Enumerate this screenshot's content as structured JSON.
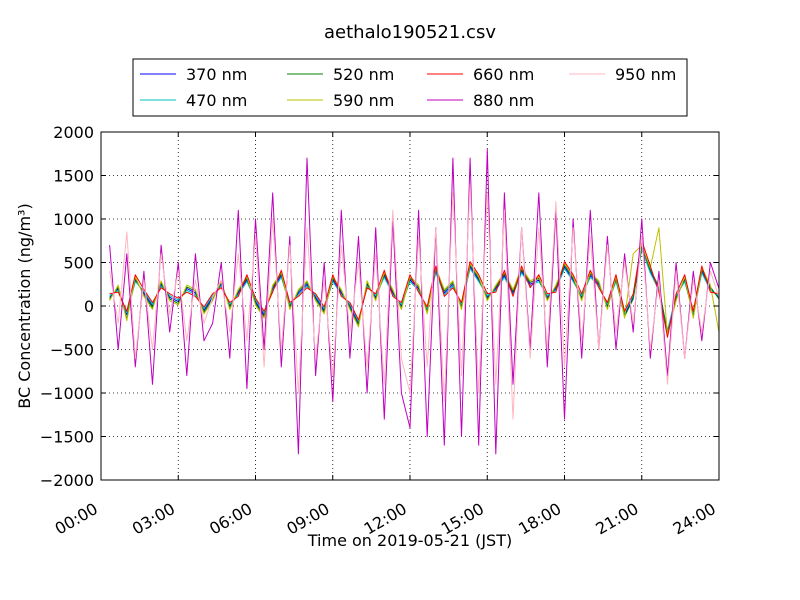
{
  "chart_data": {
    "type": "line",
    "title": "aethalo190521.csv",
    "xlabel": "Time on 2019-05-21 (JST)",
    "ylabel": "BC Concentration (ng/m³)",
    "xlim": [
      "00:00",
      "24:00"
    ],
    "ylim": [
      -2000,
      2000
    ],
    "x_ticks": [
      "00:00",
      "03:00",
      "06:00",
      "09:00",
      "12:00",
      "15:00",
      "18:00",
      "21:00",
      "24:00"
    ],
    "y_ticks": [
      "−2000",
      "−1500",
      "−1000",
      "−500",
      "0",
      "500",
      "1000",
      "1500",
      "2000"
    ],
    "grid": true,
    "legend_position": "top-center",
    "x": [
      "00:20",
      "00:40",
      "01:00",
      "01:20",
      "01:40",
      "02:00",
      "02:20",
      "02:40",
      "03:00",
      "03:20",
      "03:40",
      "04:00",
      "04:20",
      "04:40",
      "05:00",
      "05:20",
      "05:40",
      "06:00",
      "06:20",
      "06:40",
      "07:00",
      "07:20",
      "07:40",
      "08:00",
      "08:20",
      "08:40",
      "09:00",
      "09:20",
      "09:40",
      "10:00",
      "10:20",
      "10:40",
      "11:00",
      "11:20",
      "11:40",
      "12:00",
      "12:20",
      "12:40",
      "13:00",
      "13:20",
      "13:40",
      "14:00",
      "14:20",
      "14:40",
      "15:00",
      "15:20",
      "15:40",
      "16:00",
      "16:20",
      "16:40",
      "17:00",
      "17:20",
      "17:40",
      "18:00",
      "18:20",
      "18:40",
      "19:00",
      "19:20",
      "19:40",
      "20:00",
      "20:20",
      "20:40",
      "21:00",
      "21:20",
      "21:40",
      "22:00",
      "22:20",
      "22:40",
      "23:00",
      "23:20",
      "23:40",
      "24:00"
    ],
    "series": [
      {
        "name": "370 nm",
        "color": "#0000ff",
        "values": [
          100,
          200,
          -100,
          300,
          150,
          0,
          250,
          100,
          50,
          200,
          150,
          -50,
          100,
          250,
          0,
          150,
          300,
          50,
          -100,
          200,
          350,
          0,
          150,
          250,
          100,
          -50,
          300,
          150,
          0,
          -200,
          250,
          100,
          350,
          150,
          0,
          300,
          200,
          -50,
          400,
          150,
          250,
          0,
          450,
          300,
          100,
          200,
          350,
          150,
          400,
          250,
          300,
          100,
          200,
          450,
          300,
          100,
          350,
          250,
          0,
          300,
          -100,
          100,
          700,
          400,
          200,
          -300,
          100,
          300,
          -100,
          400,
          200,
          100
        ]
      },
      {
        "name": "470 nm",
        "color": "#00bfbf",
        "values": [
          120,
          180,
          -80,
          280,
          170,
          20,
          230,
          120,
          70,
          180,
          130,
          -30,
          120,
          230,
          20,
          130,
          280,
          70,
          -80,
          180,
          330,
          20,
          130,
          230,
          120,
          -30,
          280,
          130,
          20,
          -180,
          230,
          120,
          330,
          130,
          20,
          280,
          180,
          -30,
          380,
          130,
          230,
          20,
          430,
          280,
          120,
          180,
          330,
          130,
          380,
          230,
          280,
          120,
          180,
          430,
          280,
          120,
          330,
          230,
          20,
          280,
          -80,
          120,
          650,
          380,
          180,
          -280,
          120,
          280,
          -80,
          380,
          180,
          120
        ]
      },
      {
        "name": "520 nm",
        "color": "#008000",
        "values": [
          80,
          220,
          -150,
          320,
          130,
          -20,
          270,
          80,
          30,
          220,
          170,
          -70,
          80,
          270,
          -20,
          170,
          320,
          30,
          -120,
          220,
          370,
          -20,
          170,
          270,
          80,
          -70,
          320,
          170,
          -20,
          -220,
          270,
          80,
          370,
          170,
          -20,
          320,
          220,
          -70,
          420,
          170,
          270,
          -20,
          470,
          320,
          80,
          220,
          370,
          170,
          420,
          270,
          320,
          80,
          220,
          470,
          320,
          80,
          370,
          270,
          -20,
          320,
          -120,
          80,
          680,
          420,
          220,
          -320,
          80,
          320,
          -120,
          420,
          220,
          80
        ]
      },
      {
        "name": "590 nm",
        "color": "#bfbf00",
        "values": [
          60,
          240,
          -170,
          340,
          110,
          -40,
          290,
          60,
          10,
          240,
          190,
          -90,
          60,
          290,
          -40,
          190,
          340,
          10,
          -140,
          240,
          390,
          -40,
          190,
          290,
          60,
          -90,
          340,
          190,
          -40,
          -240,
          290,
          60,
          390,
          190,
          -40,
          340,
          240,
          -90,
          440,
          190,
          290,
          -40,
          490,
          340,
          60,
          240,
          390,
          190,
          440,
          290,
          340,
          60,
          240,
          490,
          340,
          60,
          390,
          290,
          -40,
          340,
          -140,
          600,
          700,
          440,
          900,
          -340,
          60,
          340,
          -140,
          440,
          240,
          -300
        ]
      },
      {
        "name": "660 nm",
        "color": "#ff0000",
        "values": [
          140,
          160,
          -60,
          360,
          190,
          40,
          210,
          140,
          90,
          160,
          110,
          -10,
          140,
          210,
          40,
          110,
          360,
          90,
          -60,
          160,
          410,
          40,
          110,
          210,
          140,
          -10,
          360,
          110,
          40,
          -160,
          210,
          140,
          410,
          110,
          40,
          360,
          160,
          -10,
          460,
          110,
          210,
          40,
          510,
          360,
          140,
          160,
          410,
          110,
          460,
          210,
          360,
          140,
          160,
          510,
          360,
          140,
          410,
          210,
          40,
          360,
          -60,
          140,
          750,
          460,
          160,
          -360,
          140,
          360,
          -60,
          460,
          160,
          140
        ]
      },
      {
        "name": "880 nm",
        "color": "#bf00bf",
        "values": [
          700,
          -500,
          600,
          -700,
          400,
          -900,
          700,
          -300,
          500,
          -800,
          600,
          -400,
          -200,
          500,
          -600,
          1100,
          -950,
          1000,
          -500,
          1300,
          -700,
          800,
          -1700,
          1700,
          -800,
          500,
          -1100,
          1100,
          -600,
          800,
          -1000,
          900,
          -1300,
          1000,
          -1000,
          -1400,
          1100,
          -1500,
          900,
          -1600,
          1700,
          -1500,
          1700,
          -1600,
          1800,
          -1700,
          1300,
          -900,
          900,
          -500,
          1300,
          -700,
          1100,
          -1300,
          1000,
          -600,
          1100,
          -500,
          800,
          -500,
          600,
          -300,
          1000,
          -600,
          400,
          -800,
          500,
          -600,
          400,
          -400,
          500,
          200
        ]
      },
      {
        "name": "950 nm",
        "color": "#ffb6c1",
        "values": [
          400,
          -200,
          850,
          -600,
          300,
          -500,
          600,
          -100,
          400,
          -400,
          300,
          -200,
          100,
          300,
          -300,
          600,
          -400,
          800,
          -700,
          1000,
          -500,
          700,
          -1000,
          900,
          -600,
          300,
          -800,
          700,
          -300,
          500,
          -700,
          600,
          -900,
          1100,
          -600,
          -1000,
          800,
          -700,
          900,
          -1100,
          1300,
          -800,
          1400,
          -1000,
          1300,
          -900,
          1100,
          -1300,
          900,
          -600,
          900,
          -500,
          1200,
          -700,
          900,
          -400,
          800,
          -500,
          700,
          -300,
          500,
          -200,
          800,
          -500,
          300,
          -900,
          400,
          -600,
          300,
          -300,
          400,
          100
        ]
      }
    ]
  }
}
